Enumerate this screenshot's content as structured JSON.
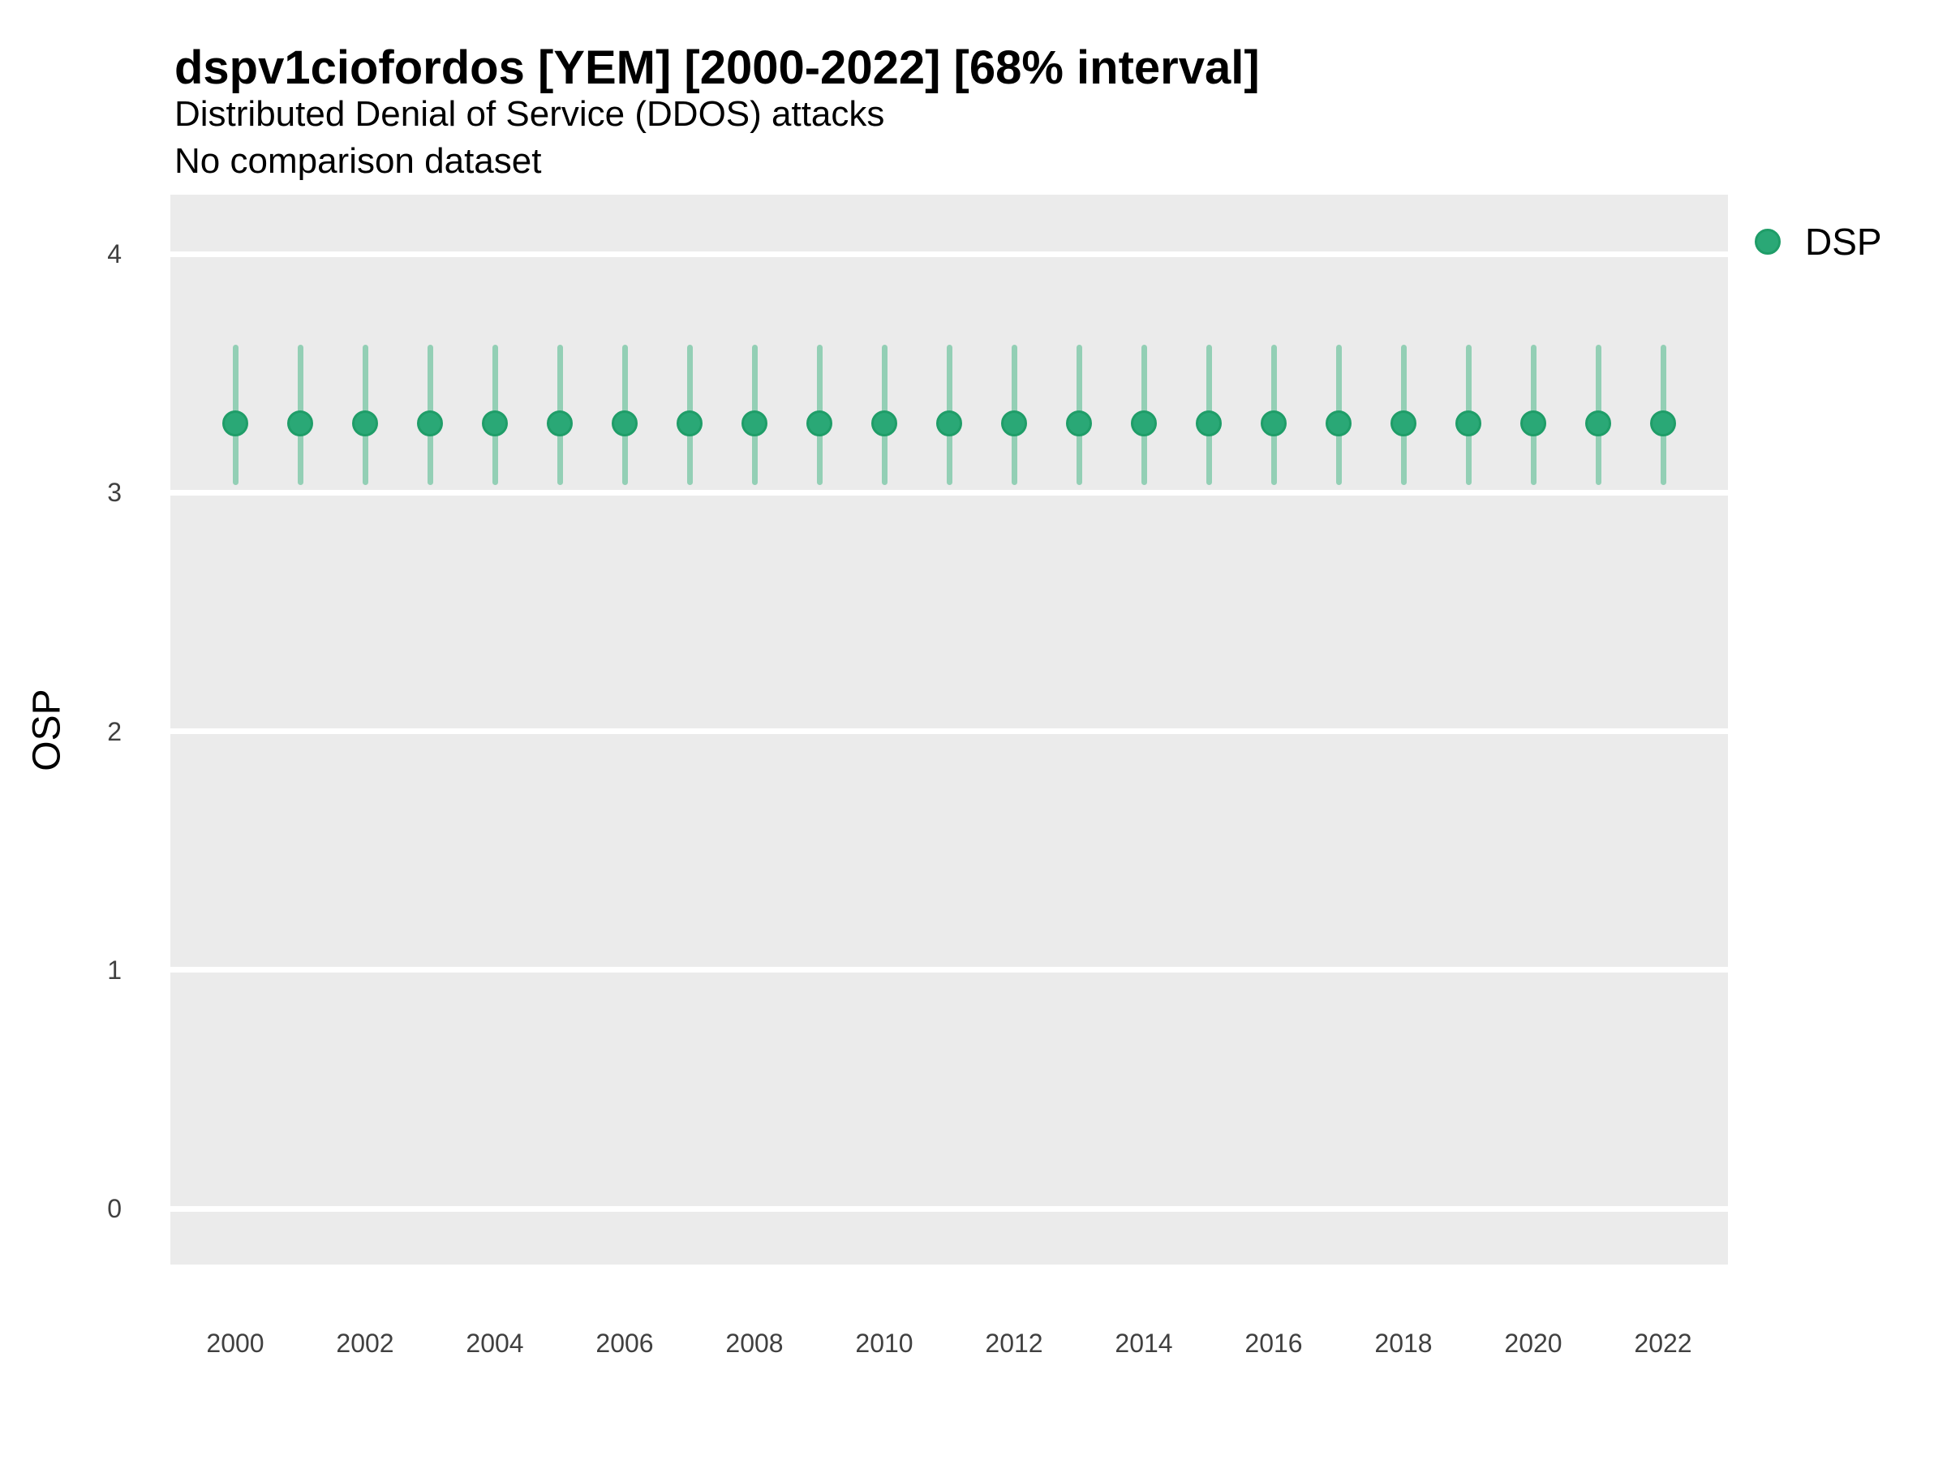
{
  "header": {
    "title": "dspv1ciofordos [YEM] [2000-2022] [68% interval]",
    "subtitle": "Distributed Denial of Service (DDOS) attacks",
    "note": "No comparison dataset"
  },
  "legend": {
    "items": [
      {
        "label": "DSP",
        "swatch_color": "#2aa876",
        "swatch_border_color": "#1f9d68"
      }
    ]
  },
  "chart_data": {
    "type": "scatter",
    "title": "dspv1ciofordos [YEM] [2000-2022] [68% interval]",
    "subtitle": "Distributed Denial of Service (DDOS) attacks",
    "annotation": "No comparison dataset",
    "interval": "68%",
    "xlabel": "",
    "ylabel": "OSP",
    "legend_position": "right-top",
    "grid": "horizontal-major-only",
    "x": [
      2000,
      2001,
      2002,
      2003,
      2004,
      2005,
      2006,
      2007,
      2008,
      2009,
      2010,
      2011,
      2012,
      2013,
      2014,
      2015,
      2016,
      2017,
      2018,
      2019,
      2020,
      2021,
      2022
    ],
    "series": [
      {
        "name": "DSP",
        "values": [
          3.29,
          3.29,
          3.29,
          3.29,
          3.29,
          3.29,
          3.29,
          3.29,
          3.29,
          3.29,
          3.29,
          3.29,
          3.29,
          3.29,
          3.29,
          3.29,
          3.29,
          3.29,
          3.29,
          3.29,
          3.29,
          3.29,
          3.29
        ],
        "interval_low": [
          3.03,
          3.03,
          3.03,
          3.03,
          3.03,
          3.03,
          3.03,
          3.03,
          3.03,
          3.03,
          3.03,
          3.03,
          3.03,
          3.03,
          3.03,
          3.03,
          3.03,
          3.03,
          3.03,
          3.03,
          3.03,
          3.03,
          3.03
        ],
        "interval_high": [
          3.62,
          3.62,
          3.62,
          3.62,
          3.62,
          3.62,
          3.62,
          3.62,
          3.62,
          3.62,
          3.62,
          3.62,
          3.62,
          3.62,
          3.62,
          3.62,
          3.62,
          3.62,
          3.62,
          3.62,
          3.62,
          3.62,
          3.62
        ]
      }
    ],
    "xticks": [
      2000,
      2002,
      2004,
      2006,
      2008,
      2010,
      2012,
      2014,
      2016,
      2018,
      2020,
      2022
    ],
    "yticks": [
      0,
      1,
      2,
      3,
      4
    ],
    "ylim": [
      -0.23,
      4.25
    ],
    "colors": {
      "point": "#2aa876",
      "point_border": "#1f9d68",
      "interval_bar": "#93cfb5",
      "panel_bg": "#ebebeb",
      "gridline": "#ffffff"
    }
  }
}
